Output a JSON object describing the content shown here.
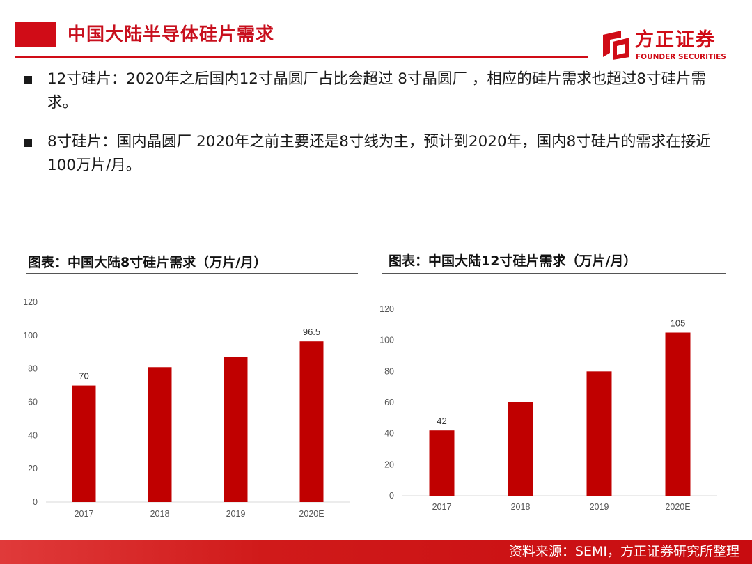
{
  "header": {
    "title": "中国大陆半导体硅片需求"
  },
  "logo": {
    "name_cn": "方正证券",
    "name_en": "FOUNDER SECURITIES",
    "icon": "founder-logo-icon"
  },
  "bullets": [
    {
      "text": "12寸硅片：2020年之后国内12寸晶圆厂占比会超过 8寸晶圆厂 ，相应的硅片需求也超过8寸硅片需求。"
    },
    {
      "text": "8寸硅片：国内晶圆厂 2020年之前主要还是8寸线为主，预计到2020年，国内8寸硅片的需求在接近100万片/月。"
    }
  ],
  "colors": {
    "accent": "#d00c17",
    "bar": "#c00000"
  },
  "chart_data": [
    {
      "type": "bar",
      "title": "图表：中国大陆8寸硅片需求（万片/月）",
      "categories": [
        "2017",
        "2018",
        "2019",
        "2020E"
      ],
      "values": [
        70,
        81,
        87,
        96.5
      ],
      "data_labels": [
        "70",
        "",
        "",
        "96.5"
      ],
      "ylim": [
        0,
        120
      ],
      "yticks": [
        0,
        20,
        40,
        60,
        80,
        100,
        120
      ],
      "grid": false,
      "xlabel": "",
      "ylabel": ""
    },
    {
      "type": "bar",
      "title": "图表：中国大陆12寸硅片需求（万片/月）",
      "categories": [
        "2017",
        "2018",
        "2019",
        "2020E"
      ],
      "values": [
        42,
        60,
        80,
        105
      ],
      "data_labels": [
        "42",
        "",
        "",
        "105"
      ],
      "ylim": [
        0,
        120
      ],
      "yticks": [
        0,
        20,
        40,
        60,
        80,
        100,
        120
      ],
      "grid": false,
      "xlabel": "",
      "ylabel": ""
    }
  ],
  "footer": {
    "source": "资料来源：SEMI，方正证券研究所整理"
  }
}
